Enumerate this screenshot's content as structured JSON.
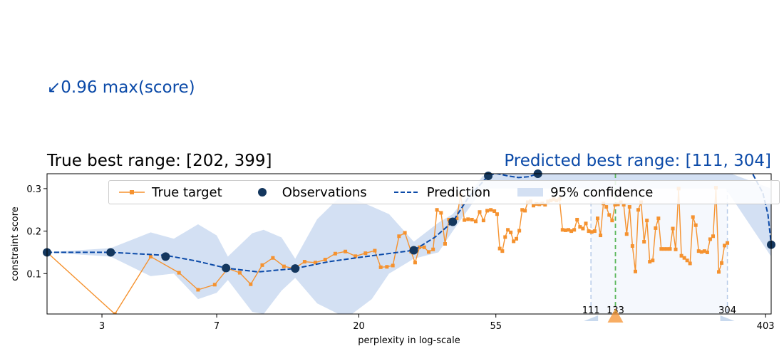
{
  "annotation": {
    "max_score": "↙0.96 max(score)"
  },
  "titles": {
    "true_range": "True best range: [202, 399]",
    "predicted_range": "Predicted best range: [111, 304]"
  },
  "legend": {
    "true_target": "True target",
    "observations": "Observations",
    "prediction": "Prediction",
    "confidence": "95% confidence"
  },
  "colors": {
    "true_target": "#f5922f",
    "observations": "#14375e",
    "prediction": "#0b4aa8",
    "confidence": "#d3e0f3",
    "best_line": "#5cb85c",
    "range_marker": "#c8d9ee",
    "title_pred": "#0b4aa8"
  },
  "chart_data": {
    "type": "line",
    "xscale": "log",
    "xlabel": "perplexity in log-scale",
    "ylabel": "constraint score",
    "xlim": [
      2,
      420
    ],
    "ylim": [
      0.005,
      0.335
    ],
    "xticks": [
      3,
      7,
      20,
      55,
      403
    ],
    "yticks": [
      0.1,
      0.2,
      0.3
    ],
    "series": [
      {
        "name": "True target",
        "points": [
          [
            2,
            0.15
          ],
          [
            3.3,
            0.005
          ],
          [
            4.3,
            0.14
          ],
          [
            5.3,
            0.102
          ],
          [
            6.1,
            0.062
          ],
          [
            6.9,
            0.074
          ],
          [
            7.6,
            0.112
          ],
          [
            8.3,
            0.102
          ],
          [
            9.0,
            0.075
          ],
          [
            9.8,
            0.12
          ],
          [
            10.6,
            0.137
          ],
          [
            11.5,
            0.117
          ],
          [
            12.4,
            0.112
          ],
          [
            13.4,
            0.128
          ],
          [
            14.5,
            0.126
          ],
          [
            15.6,
            0.133
          ],
          [
            16.8,
            0.147
          ],
          [
            18.1,
            0.152
          ],
          [
            19.5,
            0.141
          ],
          [
            21.0,
            0.148
          ],
          [
            22.5,
            0.154
          ],
          [
            23.5,
            0.115
          ],
          [
            24.6,
            0.116
          ],
          [
            25.7,
            0.119
          ],
          [
            26.9,
            0.188
          ],
          [
            28.1,
            0.196
          ],
          [
            29.4,
            0.152
          ],
          [
            30.3,
            0.126
          ],
          [
            31.3,
            0.162
          ],
          [
            32.4,
            0.162
          ],
          [
            33.5,
            0.151
          ],
          [
            34.6,
            0.157
          ],
          [
            35.6,
            0.25
          ],
          [
            36.7,
            0.243
          ],
          [
            37.8,
            0.17
          ],
          [
            38.9,
            0.227
          ],
          [
            40.0,
            0.22
          ],
          [
            41.2,
            0.23
          ],
          [
            42.4,
            0.285
          ],
          [
            43.6,
            0.226
          ],
          [
            44.8,
            0.228
          ],
          [
            46.1,
            0.227
          ],
          [
            47.4,
            0.223
          ],
          [
            48.8,
            0.245
          ],
          [
            50.2,
            0.225
          ],
          [
            51.6,
            0.248
          ],
          [
            53.0,
            0.25
          ],
          [
            54.4,
            0.247
          ],
          [
            55.5,
            0.24
          ],
          [
            56.6,
            0.159
          ],
          [
            57.7,
            0.153
          ],
          [
            58.9,
            0.186
          ],
          [
            60.1,
            0.203
          ],
          [
            61.4,
            0.197
          ],
          [
            62.7,
            0.176
          ],
          [
            64.0,
            0.182
          ],
          [
            65.4,
            0.201
          ],
          [
            66.8,
            0.25
          ],
          [
            68.2,
            0.248
          ],
          [
            69.6,
            0.268
          ],
          [
            71.1,
            0.27
          ],
          [
            72.6,
            0.26
          ],
          [
            74.2,
            0.264
          ],
          [
            75.8,
            0.263
          ],
          [
            77.5,
            0.265
          ],
          [
            79.1,
            0.262
          ],
          [
            80.8,
            0.27
          ],
          [
            82.5,
            0.272
          ],
          [
            84.3,
            0.275
          ],
          [
            86.1,
            0.272
          ],
          [
            88.0,
            0.276
          ],
          [
            90.0,
            0.203
          ],
          [
            92.0,
            0.202
          ],
          [
            94.0,
            0.203
          ],
          [
            96.0,
            0.2
          ],
          [
            98.1,
            0.203
          ],
          [
            100.2,
            0.227
          ],
          [
            102.4,
            0.21
          ],
          [
            104.6,
            0.206
          ],
          [
            106.9,
            0.218
          ],
          [
            109.2,
            0.2
          ],
          [
            111.6,
            0.198
          ],
          [
            114.1,
            0.2
          ],
          [
            116.6,
            0.23
          ],
          [
            119.1,
            0.19
          ],
          [
            121.7,
            0.265
          ],
          [
            124.3,
            0.257
          ],
          [
            127.0,
            0.238
          ],
          [
            129.8,
            0.225
          ],
          [
            132.6,
            0.262
          ],
          [
            135.5,
            0.263
          ],
          [
            138.4,
            0.268
          ],
          [
            141.4,
            0.262
          ],
          [
            144.5,
            0.193
          ],
          [
            147.6,
            0.257
          ],
          [
            150.8,
            0.165
          ],
          [
            154.1,
            0.105
          ],
          [
            157.4,
            0.25
          ],
          [
            160.8,
            0.268
          ],
          [
            164.3,
            0.175
          ],
          [
            167.8,
            0.225
          ],
          [
            171.4,
            0.128
          ],
          [
            175.1,
            0.131
          ],
          [
            178.9,
            0.207
          ],
          [
            182.7,
            0.23
          ],
          [
            186.6,
            0.158
          ],
          [
            190.6,
            0.158
          ],
          [
            194.7,
            0.158
          ],
          [
            198.9,
            0.158
          ],
          [
            203.2,
            0.206
          ],
          [
            207.5,
            0.157
          ],
          [
            212.0,
            0.3
          ],
          [
            216.5,
            0.142
          ],
          [
            221.2,
            0.137
          ],
          [
            225.9,
            0.131
          ],
          [
            230.7,
            0.124
          ],
          [
            235.7,
            0.233
          ],
          [
            240.7,
            0.214
          ],
          [
            245.9,
            0.153
          ],
          [
            251.2,
            0.151
          ],
          [
            256.6,
            0.153
          ],
          [
            262.1,
            0.15
          ],
          [
            267.7,
            0.181
          ],
          [
            273.5,
            0.188
          ],
          [
            279.3,
            0.302
          ],
          [
            285.3,
            0.104
          ],
          [
            291.4,
            0.125
          ],
          [
            297.7,
            0.166
          ],
          [
            304.0,
            0.172
          ]
        ]
      },
      {
        "name": "Observations",
        "points": [
          [
            2,
            0.15
          ],
          [
            3.2,
            0.15
          ],
          [
            4.8,
            0.14
          ],
          [
            7.5,
            0.113
          ],
          [
            12.5,
            0.112
          ],
          [
            30,
            0.155
          ],
          [
            40,
            0.222
          ],
          [
            52,
            0.33
          ],
          [
            75,
            0.335
          ],
          [
            420,
            0.168
          ]
        ]
      },
      {
        "name": "Prediction",
        "points": [
          [
            2,
            0.15
          ],
          [
            3.2,
            0.15
          ],
          [
            4.8,
            0.143
          ],
          [
            6,
            0.13
          ],
          [
            7.5,
            0.113
          ],
          [
            9.5,
            0.104
          ],
          [
            12.5,
            0.112
          ],
          [
            16,
            0.128
          ],
          [
            20,
            0.138
          ],
          [
            30,
            0.155
          ],
          [
            35,
            0.185
          ],
          [
            40,
            0.222
          ],
          [
            45,
            0.28
          ],
          [
            52,
            0.33
          ],
          [
            55,
            0.336
          ],
          [
            60,
            0.33
          ],
          [
            65,
            0.326
          ],
          [
            70,
            0.328
          ],
          [
            75,
            0.335
          ],
          [
            300,
            0.37
          ],
          [
            360,
            0.345
          ],
          [
            395,
            0.29
          ],
          [
            410,
            0.24
          ],
          [
            420,
            0.17
          ]
        ],
        "upper": [
          [
            2,
            0.15
          ],
          [
            3.2,
            0.16
          ],
          [
            4.3,
            0.197
          ],
          [
            5.1,
            0.182
          ],
          [
            6.1,
            0.216
          ],
          [
            7.0,
            0.19
          ],
          [
            7.6,
            0.14
          ],
          [
            9.1,
            0.195
          ],
          [
            9.9,
            0.203
          ],
          [
            11.3,
            0.185
          ],
          [
            12.5,
            0.135
          ],
          [
            14.7,
            0.228
          ],
          [
            17.2,
            0.277
          ],
          [
            19.0,
            0.277
          ],
          [
            22.0,
            0.258
          ],
          [
            25.0,
            0.24
          ],
          [
            30,
            0.175
          ],
          [
            36,
            0.22
          ],
          [
            40,
            0.24
          ],
          [
            50,
            0.33
          ],
          [
            56,
            0.34
          ],
          [
            70,
            0.34
          ],
          [
            300,
            0.34
          ],
          [
            420,
            0.3
          ]
        ],
        "lower": [
          [
            2,
            0.15
          ],
          [
            3.2,
            0.14
          ],
          [
            4.3,
            0.094
          ],
          [
            5.1,
            0.1
          ],
          [
            6.1,
            0.04
          ],
          [
            7.0,
            0.055
          ],
          [
            7.6,
            0.085
          ],
          [
            9.1,
            0.01
          ],
          [
            9.9,
            0.005
          ],
          [
            11.3,
            0.06
          ],
          [
            12.5,
            0.09
          ],
          [
            14.7,
            0.03
          ],
          [
            17.2,
            0.005
          ],
          [
            19.0,
            0.005
          ],
          [
            22.0,
            0.04
          ],
          [
            25.0,
            0.1
          ],
          [
            30,
            0.135
          ],
          [
            36,
            0.15
          ],
          [
            40,
            0.2
          ],
          [
            50,
            0.3
          ],
          [
            56,
            0.3
          ],
          [
            70,
            0.3
          ],
          [
            300,
            0.3
          ],
          [
            420,
            0.14
          ]
        ]
      }
    ],
    "best_line_x": 133,
    "range_markers": [
      {
        "x": 111,
        "label": "111"
      },
      {
        "x": 133,
        "label": "133"
      },
      {
        "x": 304,
        "label": "304"
      }
    ],
    "predicted_range": [
      111,
      304
    ],
    "legend_position": "top"
  }
}
